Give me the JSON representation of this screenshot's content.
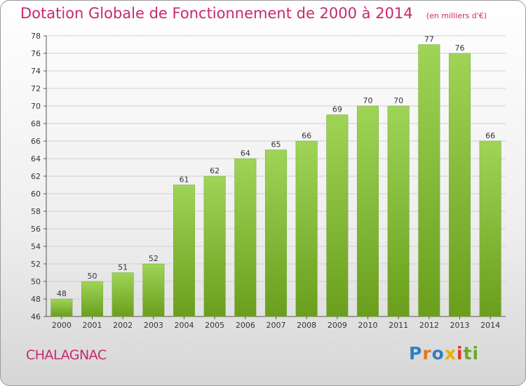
{
  "title": "Dotation Globale de Fonctionnement de 2000 à 2014",
  "unit": "(en milliers d'€)",
  "commune": "CHALAGNAC",
  "logo": {
    "text": "Proxiti",
    "letters": [
      {
        "ch": "P",
        "color": "#2f7fc1"
      },
      {
        "ch": "r",
        "color": "#e07a1a"
      },
      {
        "ch": "o",
        "color": "#2f7fc1"
      },
      {
        "ch": "x",
        "color": "#e8b000"
      },
      {
        "ch": "i",
        "color": "#d93c2b"
      },
      {
        "ch": "t",
        "color": "#6aa82a"
      },
      {
        "ch": "i",
        "color": "#6aa82a"
      }
    ]
  },
  "colors": {
    "title": "#c8286e",
    "bar_top": "#9fd457",
    "bar_bottom": "#6a9e1c",
    "grid": "#cfcfcf"
  },
  "chart_data": {
    "type": "bar",
    "categories": [
      "2000",
      "2001",
      "2002",
      "2003",
      "2004",
      "2005",
      "2006",
      "2007",
      "2008",
      "2009",
      "2010",
      "2011",
      "2012",
      "2013",
      "2014"
    ],
    "values": [
      48,
      50,
      51,
      52,
      61,
      62,
      64,
      65,
      66,
      69,
      70,
      70,
      77,
      76,
      66
    ],
    "ylim": [
      46,
      78
    ],
    "yticks": [
      46,
      48,
      50,
      52,
      54,
      56,
      58,
      60,
      62,
      64,
      66,
      68,
      70,
      72,
      74,
      76,
      78
    ],
    "grid": true,
    "xlabel": "",
    "ylabel": ""
  }
}
